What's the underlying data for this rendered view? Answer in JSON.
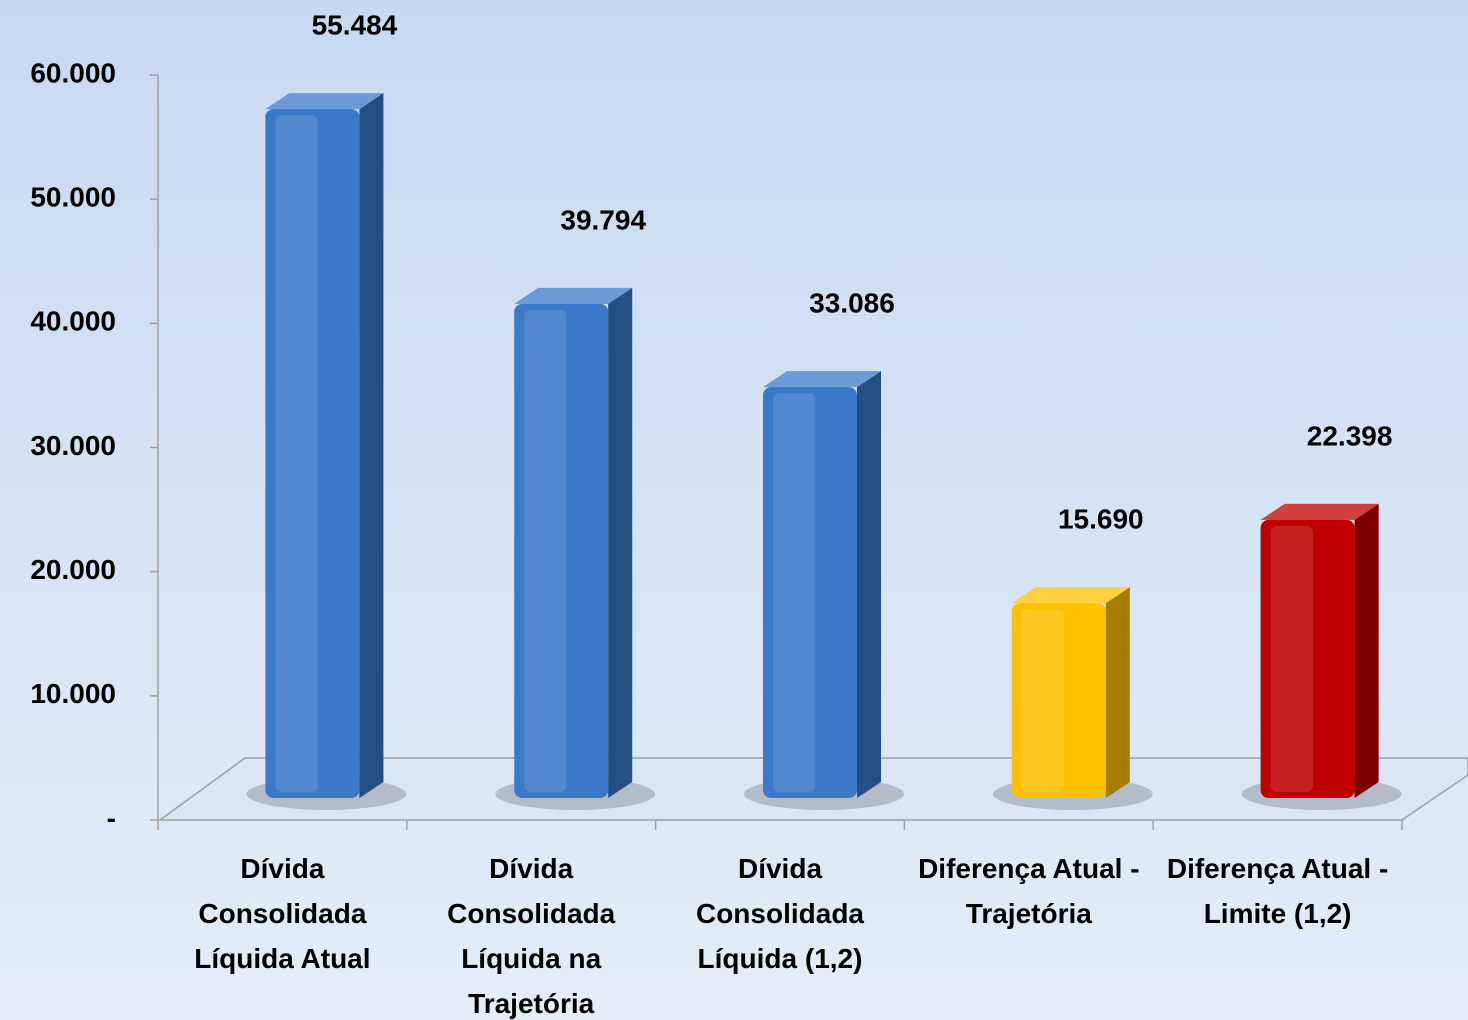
{
  "chart_data": {
    "type": "bar",
    "categories": [
      "Dívida Consolidada Líquida Atual",
      "Dívida Consolidada Líquida na Trajetória",
      "Dívida Consolidada Líquida (1,2)",
      "Diferença Atual - Trajetória",
      "Diferença Atual - Limite (1,2)"
    ],
    "values": [
      55484,
      39794,
      33086,
      15690,
      22398
    ],
    "value_labels": [
      "55.484",
      "39.794",
      "33.086",
      "15.690",
      "22.398"
    ],
    "colors": [
      "#3a78c8",
      "#3a78c8",
      "#3a78c8",
      "#ffc000",
      "#c00000"
    ],
    "ylim": [
      0,
      60000
    ],
    "yticks": [
      {
        "value": 0,
        "label": "-"
      },
      {
        "value": 10000,
        "label": "10.000"
      },
      {
        "value": 20000,
        "label": "20.000"
      },
      {
        "value": 30000,
        "label": "30.000"
      },
      {
        "value": 40000,
        "label": "40.000"
      },
      {
        "value": 50000,
        "label": "50.000"
      },
      {
        "value": 60000,
        "label": "60.000"
      }
    ]
  }
}
